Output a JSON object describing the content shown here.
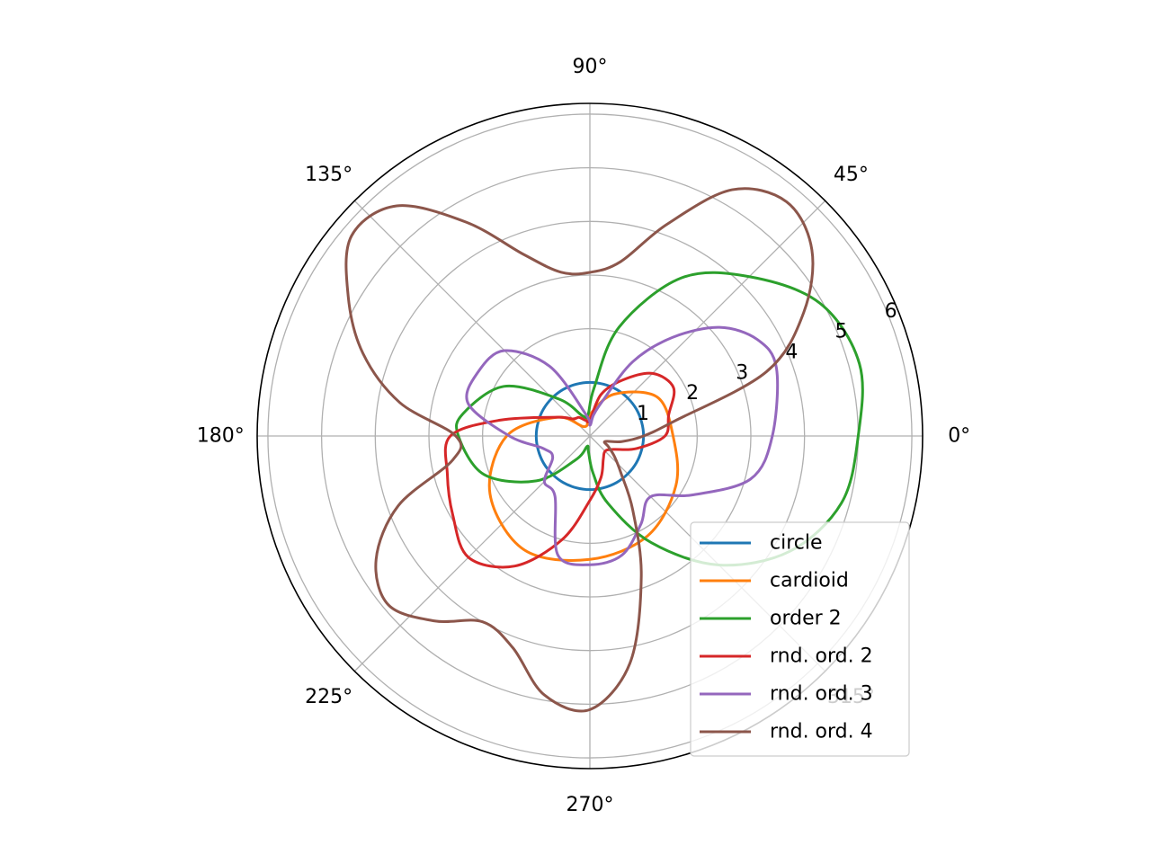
{
  "chart_data": {
    "type": "line",
    "projection": "polar",
    "title": "",
    "theta_unit": "degrees",
    "theta_ticks": [
      "0°",
      "45°",
      "90°",
      "135°",
      "180°",
      "225°",
      "270°",
      "315°"
    ],
    "theta_tick_values": [
      0,
      45,
      90,
      135,
      180,
      225,
      270,
      315
    ],
    "r_ticks": [
      "1",
      "2",
      "3",
      "4",
      "5",
      "6"
    ],
    "r_tick_values": [
      1,
      2,
      3,
      4,
      5,
      6
    ],
    "r_label_angle_deg": 22.5,
    "rlim": [
      0,
      6.2
    ],
    "grid": true,
    "legend_placement": "lower-right",
    "series": [
      {
        "name": "circle",
        "color": "#1f77b4",
        "theta": [
          0,
          30,
          60,
          90,
          120,
          150,
          180,
          210,
          240,
          270,
          300,
          330
        ],
        "r": [
          1,
          1,
          1,
          1,
          1,
          1,
          1,
          1,
          1,
          1,
          1,
          1
        ]
      },
      {
        "name": "cardioid",
        "color": "#ff7f0e",
        "theta": [
          0,
          30,
          60,
          90,
          120,
          150,
          180,
          210,
          240,
          270,
          300,
          330
        ],
        "r": [
          1.55,
          1.45,
          0.9,
          0.4,
          0.2,
          0.7,
          1.55,
          2.15,
          2.45,
          2.3,
          2.15,
          1.85
        ]
      },
      {
        "name": "order 2",
        "color": "#2ca02c",
        "theta": [
          0,
          15,
          30,
          45,
          60,
          75,
          85,
          95,
          110,
          130,
          150,
          170,
          180,
          200,
          220,
          240,
          255,
          265,
          275,
          285,
          300,
          315,
          330,
          345
        ],
        "r": [
          5,
          5.2,
          4.95,
          4.2,
          3.4,
          2.1,
          0.9,
          0.4,
          0.4,
          0.9,
          1.85,
          2.4,
          2.45,
          2.1,
          1.3,
          0.5,
          0.2,
          0.3,
          0.7,
          1.3,
          2.3,
          3.4,
          4.3,
          4.85
        ]
      },
      {
        "name": "rnd. ord. 2",
        "color": "#d62728",
        "theta": [
          0,
          15,
          30,
          45,
          60,
          75,
          90,
          105,
          120,
          135,
          150,
          170,
          180,
          195,
          210,
          225,
          240,
          255,
          270,
          285,
          300,
          315,
          330,
          345
        ],
        "r": [
          1.4,
          1.52,
          1.8,
          1.65,
          1.2,
          0.8,
          0.3,
          0.3,
          0.4,
          0.45,
          0.7,
          1.7,
          2.6,
          2.75,
          2.95,
          3.2,
          2.8,
          2.0,
          1.2,
          0.8,
          0.5,
          0.4,
          0.5,
          0.9
        ]
      },
      {
        "name": "rnd. ord. 3",
        "color": "#9467bd",
        "theta": [
          0,
          20,
          30,
          40,
          50,
          60,
          70,
          80,
          90,
          100,
          120,
          135,
          150,
          165,
          180,
          195,
          210,
          225,
          240,
          255,
          270,
          285,
          300,
          315,
          330,
          345
        ],
        "r": [
          3.4,
          3.7,
          3.6,
          3.15,
          2.4,
          1.6,
          0.7,
          0.4,
          0.2,
          0.4,
          1.5,
          2.25,
          2.4,
          2.35,
          1.5,
          0.9,
          0.8,
          1.2,
          1.3,
          2.3,
          2.4,
          2.3,
          1.9,
          1.6,
          2.2,
          3.1
        ]
      },
      {
        "name": "rnd. ord. 4",
        "color": "#8c564b",
        "theta": [
          0,
          10,
          20,
          30,
          40,
          50,
          60,
          70,
          80,
          90,
          100,
          110,
          120,
          130,
          140,
          150,
          160,
          170,
          180,
          190,
          200,
          210,
          220,
          230,
          240,
          250,
          260,
          270,
          280,
          290,
          300,
          310,
          320,
          330,
          340,
          350
        ],
        "r": [
          1,
          1.6,
          3.5,
          4.6,
          5.4,
          5.7,
          5.3,
          4.2,
          3.3,
          3.05,
          3.1,
          3.6,
          4.6,
          5.6,
          5.8,
          5.2,
          4.5,
          3.6,
          2.5,
          2.6,
          3.8,
          4.6,
          4.9,
          4.5,
          4,
          4.2,
          4.9,
          5.1,
          4.3,
          2.8,
          1.6,
          0.9,
          0.6,
          0.4,
          0.3,
          0.6
        ]
      }
    ]
  }
}
